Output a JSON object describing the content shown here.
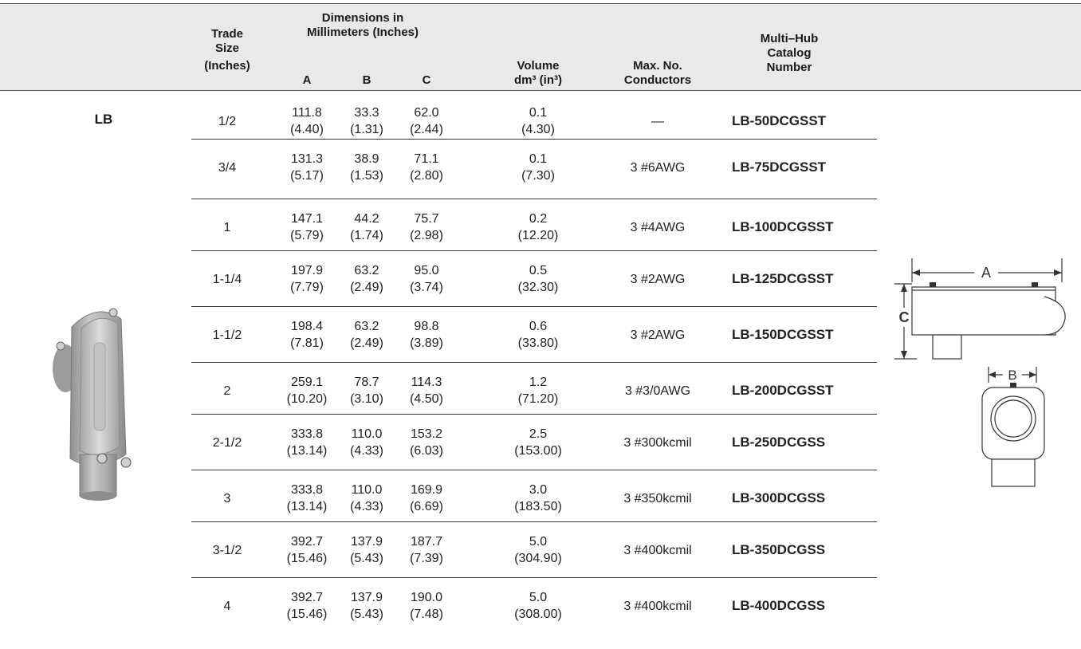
{
  "header": {
    "trade_size": [
      "Trade",
      "Size",
      "(Inches)"
    ],
    "dimensions": [
      "Dimensions in",
      "Millimeters (Inches)"
    ],
    "col_a": "A",
    "col_b": "B",
    "col_c": "C",
    "volume": [
      "Volume",
      "dm³ (in³)"
    ],
    "max_conductors": [
      "Max. No.",
      "Conductors"
    ],
    "catalog": [
      "Multi–Hub",
      "Catalog",
      "Number"
    ]
  },
  "product_label": "LB",
  "rows": [
    {
      "size": "1/2",
      "a": [
        "111.8",
        "(4.40)"
      ],
      "b": [
        "33.3",
        "(1.31)"
      ],
      "c": [
        "62.0",
        "(2.44)"
      ],
      "vol": [
        "0.1",
        "(4.30)"
      ],
      "cond": "—",
      "catalog": "LB-50DCGSST"
    },
    {
      "size": "3/4",
      "a": [
        "131.3",
        "(5.17)"
      ],
      "b": [
        "38.9",
        "(1.53)"
      ],
      "c": [
        "71.1",
        "(2.80)"
      ],
      "vol": [
        "0.1",
        "(7.30)"
      ],
      "cond": "3 #6AWG",
      "catalog": "LB-75DCGSST"
    },
    {
      "size": "1",
      "a": [
        "147.1",
        "(5.79)"
      ],
      "b": [
        "44.2",
        "(1.74)"
      ],
      "c": [
        "75.7",
        "(2.98)"
      ],
      "vol": [
        "0.2",
        "(12.20)"
      ],
      "cond": "3 #4AWG",
      "catalog": "LB-100DCGSST"
    },
    {
      "size": "1-1/4",
      "a": [
        "197.9",
        "(7.79)"
      ],
      "b": [
        "63.2",
        "(2.49)"
      ],
      "c": [
        "95.0",
        "(3.74)"
      ],
      "vol": [
        "0.5",
        "(32.30)"
      ],
      "cond": "3 #2AWG",
      "catalog": "LB-125DCGSST"
    },
    {
      "size": "1-1/2",
      "a": [
        "198.4",
        "(7.81)"
      ],
      "b": [
        "63.2",
        "(2.49)"
      ],
      "c": [
        "98.8",
        "(3.89)"
      ],
      "vol": [
        "0.6",
        "(33.80)"
      ],
      "cond": "3 #2AWG",
      "catalog": "LB-150DCGSST"
    },
    {
      "size": "2",
      "a": [
        "259.1",
        "(10.20)"
      ],
      "b": [
        "78.7",
        "(3.10)"
      ],
      "c": [
        "114.3",
        "(4.50)"
      ],
      "vol": [
        "1.2",
        "(71.20)"
      ],
      "cond": "3 #3/0AWG",
      "catalog": "LB-200DCGSST"
    },
    {
      "size": "2-1/2",
      "a": [
        "333.8",
        "(13.14)"
      ],
      "b": [
        "110.0",
        "(4.33)"
      ],
      "c": [
        "153.2",
        "(6.03)"
      ],
      "vol": [
        "2.5",
        "(153.00)"
      ],
      "cond": "3 #300kcmil",
      "catalog": "LB-250DCGSS"
    },
    {
      "size": "3",
      "a": [
        "333.8",
        "(13.14)"
      ],
      "b": [
        "110.0",
        "(4.33)"
      ],
      "c": [
        "169.9",
        "(6.69)"
      ],
      "vol": [
        "3.0",
        "(183.50)"
      ],
      "cond": "3 #350kcmil",
      "catalog": "LB-300DCGSS"
    },
    {
      "size": "3-1/2",
      "a": [
        "392.7",
        "(15.46)"
      ],
      "b": [
        "137.9",
        "(5.43)"
      ],
      "c": [
        "187.7",
        "(7.39)"
      ],
      "vol": [
        "5.0",
        "(304.90)"
      ],
      "cond": "3 #400kcmil",
      "catalog": "LB-350DCGSS"
    },
    {
      "size": "4",
      "a": [
        "392.7",
        "(15.46)"
      ],
      "b": [
        "137.9",
        "(5.43)"
      ],
      "c": [
        "190.0",
        "(7.48)"
      ],
      "vol": [
        "5.0",
        "(308.00)"
      ],
      "cond": "3 #400kcmil",
      "catalog": "LB-400DCGSS"
    }
  ],
  "diagram_labels": {
    "a": "A",
    "b": "B",
    "c": "C"
  },
  "colors": {
    "header_band": "#e9e9e9",
    "rule": "#333333",
    "product_gray": "#b9b9b9"
  }
}
